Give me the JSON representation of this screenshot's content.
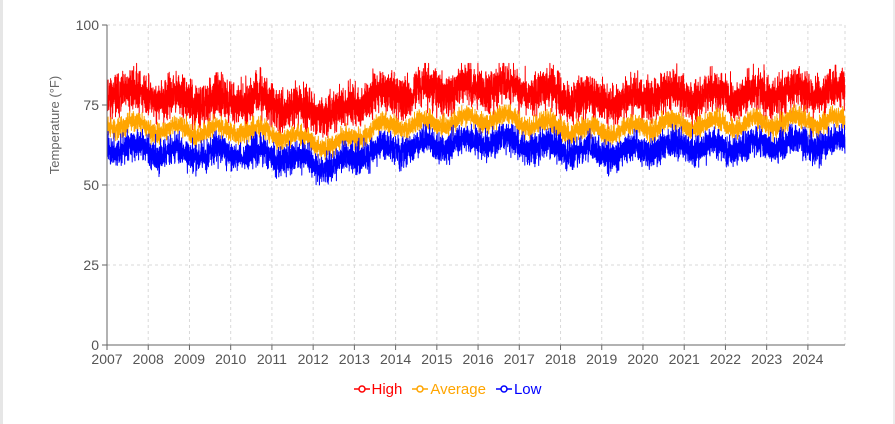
{
  "chart_data": {
    "type": "line",
    "title": "",
    "xlabel": "",
    "ylabel": "Temperature (°F)",
    "xlim": [
      2007,
      2024.9
    ],
    "ylim": [
      0,
      100
    ],
    "y_ticks": [
      0,
      25,
      50,
      75,
      100
    ],
    "x_ticks": [
      2007,
      2008,
      2009,
      2010,
      2011,
      2012,
      2013,
      2014,
      2015,
      2016,
      2017,
      2018,
      2019,
      2020,
      2021,
      2022,
      2023,
      2024
    ],
    "grid": true,
    "legend_position": "bottom-center",
    "series": [
      {
        "name": "High",
        "color": "#ff0000",
        "approx_annual_mean": [
          79,
          77,
          76,
          77,
          74,
          72,
          78,
          79,
          80,
          81,
          79,
          77,
          76,
          78,
          78,
          78,
          79,
          79
        ],
        "approx_min": 62,
        "approx_max": 88
      },
      {
        "name": "Average",
        "color": "#ffa500",
        "approx_annual_mean": [
          69,
          67,
          67,
          67,
          65,
          62,
          68,
          69,
          70,
          71,
          69,
          67,
          67,
          69,
          69,
          69,
          70,
          70
        ],
        "approx_min": 58,
        "approx_max": 75
      },
      {
        "name": "Low",
        "color": "#0000ff",
        "approx_annual_mean": [
          62,
          60,
          60,
          60,
          58,
          56,
          61,
          62,
          63,
          64,
          62,
          60,
          60,
          62,
          62,
          62,
          63,
          63
        ],
        "approx_min": 50,
        "approx_max": 69
      }
    ]
  }
}
